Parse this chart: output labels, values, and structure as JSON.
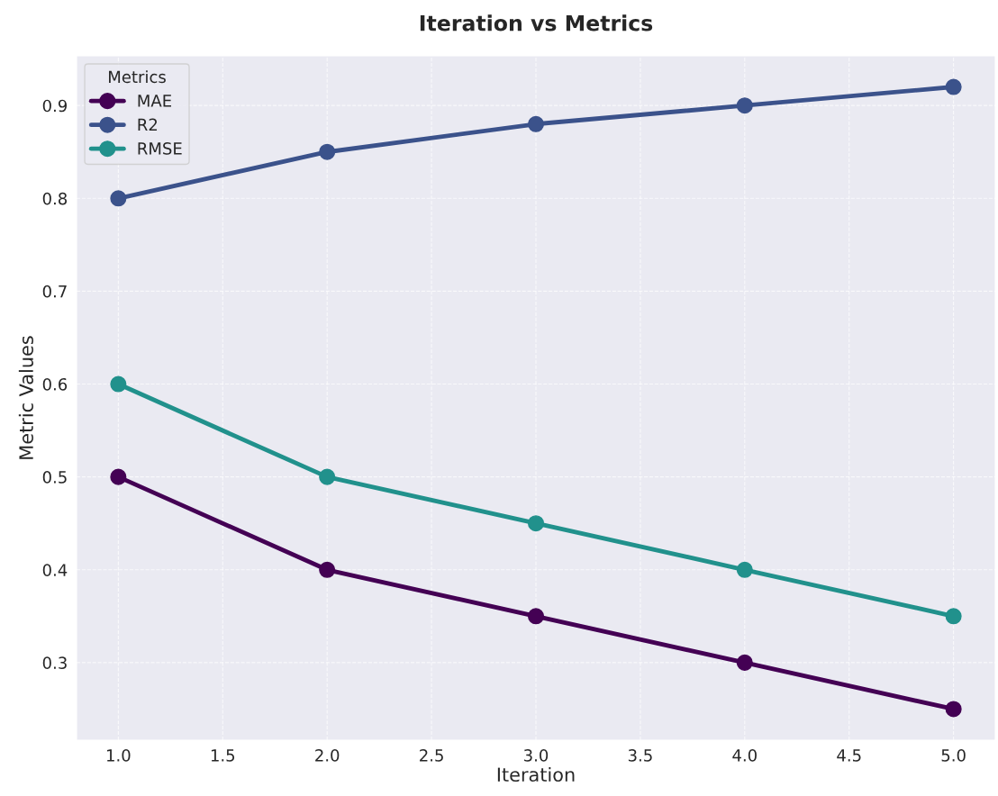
{
  "chart_data": {
    "type": "line",
    "title": "Iteration vs Metrics",
    "xlabel": "Iteration",
    "ylabel": "Metric Values",
    "legend_title": "Metrics",
    "x": [
      1,
      2,
      3,
      4,
      5
    ],
    "series": [
      {
        "name": "MAE",
        "color": "#440154",
        "values": [
          0.5,
          0.4,
          0.35,
          0.3,
          0.25
        ]
      },
      {
        "name": "R2",
        "color": "#3b528b",
        "values": [
          0.8,
          0.85,
          0.88,
          0.9,
          0.92
        ]
      },
      {
        "name": "RMSE",
        "color": "#21918c",
        "values": [
          0.6,
          0.5,
          0.45,
          0.4,
          0.35
        ]
      }
    ],
    "xlim": [
      0.8,
      5.2
    ],
    "ylim": [
      0.2165,
      0.9535
    ],
    "xticks": [
      {
        "value": 1,
        "label": "1.0"
      },
      {
        "value": 1.5,
        "label": "1.5"
      },
      {
        "value": 2,
        "label": "2.0"
      },
      {
        "value": 2.5,
        "label": "2.5"
      },
      {
        "value": 3,
        "label": "3.0"
      },
      {
        "value": 3.5,
        "label": "3.5"
      },
      {
        "value": 4,
        "label": "4.0"
      },
      {
        "value": 4.5,
        "label": "4.5"
      },
      {
        "value": 5,
        "label": "5.0"
      }
    ],
    "yticks": [
      {
        "value": 0.3,
        "label": "0.3"
      },
      {
        "value": 0.4,
        "label": "0.4"
      },
      {
        "value": 0.5,
        "label": "0.5"
      },
      {
        "value": 0.6,
        "label": "0.6"
      },
      {
        "value": 0.7,
        "label": "0.7"
      },
      {
        "value": 0.8,
        "label": "0.8"
      },
      {
        "value": 0.9,
        "label": "0.9"
      }
    ],
    "grid": true,
    "legend": "top left",
    "marker": "circle",
    "line_style": "solid"
  }
}
